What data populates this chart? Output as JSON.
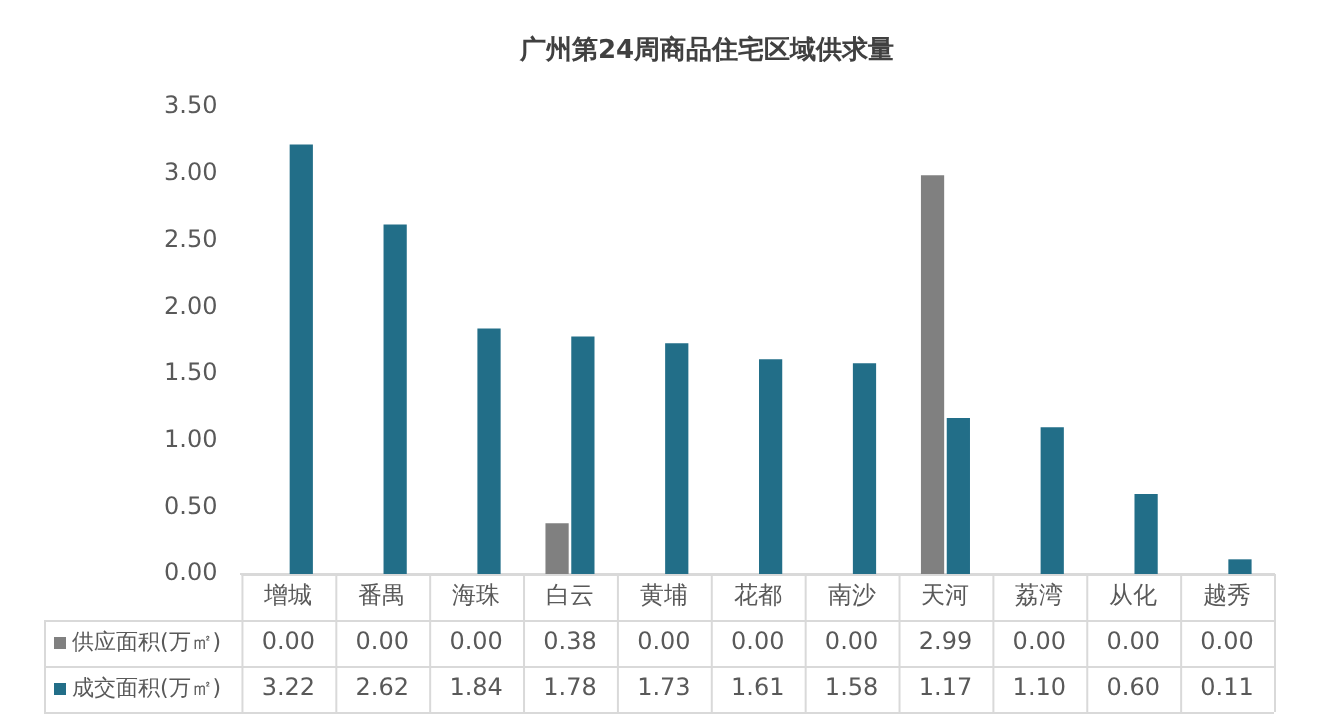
{
  "chart_data": {
    "type": "bar",
    "title": "广州第24周商品住宅区域供求量",
    "categories": [
      "增城",
      "番禺",
      "海珠",
      "白云",
      "黄埔",
      "花都",
      "南沙",
      "天河",
      "荔湾",
      "从化",
      "越秀"
    ],
    "series": [
      {
        "name": "供应面积(万㎡)",
        "color": "#808080",
        "values": [
          0,
          0,
          0,
          0.38,
          0,
          0,
          0,
          2.99,
          0,
          0,
          0
        ],
        "value_labels": [
          "0.00",
          "0.00",
          "0.00",
          "0.38",
          "0.00",
          "0.00",
          "0.00",
          "2.99",
          "0.00",
          "0.00",
          "0.00"
        ]
      },
      {
        "name": "成交面积(万㎡)",
        "color": "#226e88",
        "values": [
          3.22,
          2.62,
          1.84,
          1.78,
          1.73,
          1.61,
          1.58,
          1.17,
          1.1,
          0.6,
          0.11
        ],
        "value_labels": [
          "3.22",
          "2.62",
          "1.84",
          "1.78",
          "1.73",
          "1.61",
          "1.58",
          "1.17",
          "1.10",
          "0.60",
          "0.11"
        ]
      }
    ],
    "ylim": [
      0,
      3.5
    ],
    "yticks": [
      {
        "value": 0,
        "label": "0.00"
      },
      {
        "value": 0.5,
        "label": "0.50"
      },
      {
        "value": 1,
        "label": "1.00"
      },
      {
        "value": 1.5,
        "label": "1.50"
      },
      {
        "value": 2,
        "label": "2.00"
      },
      {
        "value": 2.5,
        "label": "2.50"
      },
      {
        "value": 3,
        "label": "3.00"
      },
      {
        "value": 3.5,
        "label": "3.50"
      }
    ],
    "grid": false,
    "legend": "bottom"
  }
}
